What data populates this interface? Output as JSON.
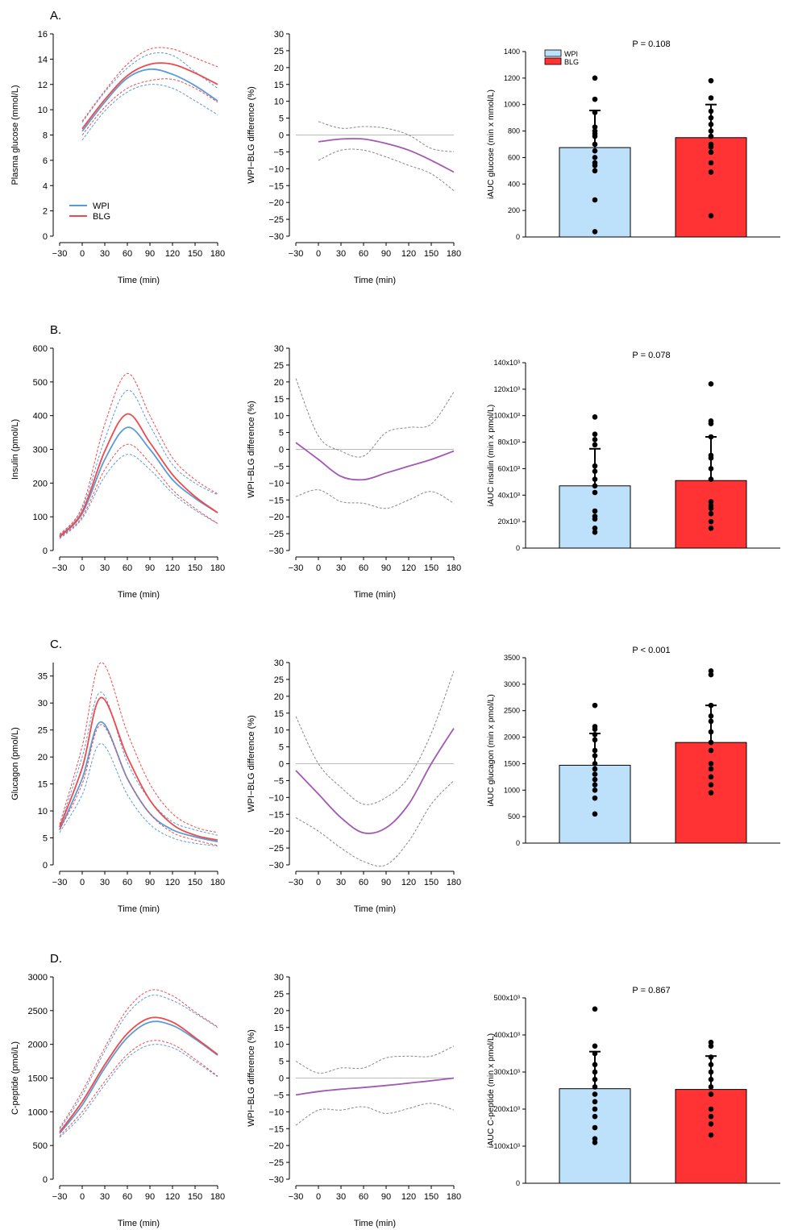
{
  "colors": {
    "wpi_line": "#5b9bd5",
    "blg_line": "#f0494b",
    "diff_line": "#a259b5",
    "diff_ci": "#888888",
    "zero_line": "#bbbbbb",
    "wpi_bar": "#bde0fb",
    "blg_bar": "#ff3333",
    "axis": "#000000"
  },
  "legend": {
    "wpi": "WPI",
    "blg": "BLG"
  },
  "panels": [
    {
      "label": "A.",
      "ylabel": "Plasma glucose (mmol/L)",
      "ylim": [
        0,
        16
      ],
      "yticks": [
        "0",
        "2",
        "4",
        "6",
        "8",
        "10",
        "12",
        "14",
        "16"
      ],
      "bar_pvalue": "P = 0.108",
      "bar_ylabel": "iAUC glucose (min x mmol/L)",
      "bar_ylim": [
        0,
        1400
      ],
      "bar_yticks": [
        "0",
        "200",
        "400",
        "600",
        "800",
        "1000",
        "1200",
        "1400"
      ]
    },
    {
      "label": "B.",
      "ylabel": "Insulin (pmol/L)",
      "ylim": [
        0,
        600
      ],
      "yticks": [
        "0",
        "100",
        "200",
        "300",
        "400",
        "500",
        "600"
      ],
      "bar_pvalue": "P = 0.078",
      "bar_ylabel": "iAUC insulin (min x pmol/L)",
      "bar_ylim": [
        0,
        140000
      ],
      "bar_yticks": [
        "0",
        "20x10³",
        "40x10³",
        "60x10³",
        "80x10³",
        "100x10³",
        "120x10³",
        "140x10³"
      ]
    },
    {
      "label": "C.",
      "ylabel": "Glucagon (pmol/L)",
      "ylim": [
        0,
        37.5
      ],
      "yticks": [
        "0",
        "5",
        "10",
        "15",
        "20",
        "25",
        "30",
        "35"
      ],
      "bar_pvalue": "P < 0.001",
      "bar_ylabel": "iAUC glucagon (min x pmol/L)",
      "bar_ylim": [
        0,
        3500
      ],
      "bar_yticks": [
        "0",
        "500",
        "1000",
        "1500",
        "2000",
        "2500",
        "3000",
        "3500"
      ]
    },
    {
      "label": "D.",
      "ylabel": "C-peptide (pmol/L)",
      "ylim": [
        0,
        3000
      ],
      "yticks": [
        "0",
        "500",
        "1000",
        "1500",
        "2000",
        "2500",
        "3000"
      ],
      "bar_pvalue": "P = 0.867",
      "bar_ylabel": "iAUC C-peptide (min x pmol/L)",
      "bar_ylim": [
        0,
        500000
      ],
      "bar_yticks": [
        "0",
        "100x10³",
        "200x10³",
        "300x10³",
        "400x10³",
        "500x10³"
      ]
    }
  ],
  "shared": {
    "xlabel": "Time (min)",
    "xticks": [
      "−30",
      "0",
      "30",
      "60",
      "90",
      "120",
      "150",
      "180"
    ],
    "xlim": [
      -30,
      180
    ],
    "diff_ylabel": "WPI−BLG difference (%)",
    "diff_ylim": [
      -30,
      30
    ],
    "diff_yticks": [
      "−30",
      "−25",
      "−20",
      "−15",
      "−10",
      "−5",
      "0",
      "5",
      "10",
      "15",
      "20",
      "25",
      "30"
    ]
  },
  "chart_data": [
    {
      "panel": "A",
      "type": "line",
      "xlabel": "Time (min)",
      "ylabel": "Plasma glucose (mmol/L)",
      "ylim": [
        0,
        16
      ],
      "x": [
        0,
        30,
        60,
        90,
        120,
        150,
        180
      ],
      "series": [
        {
          "name": "WPI",
          "values": [
            8.3,
            10.6,
            12.5,
            13.2,
            12.8,
            11.9,
            10.7
          ],
          "lower": [
            7.6,
            9.9,
            11.4,
            12.0,
            11.7,
            10.7,
            9.6
          ],
          "upper": [
            9.0,
            11.4,
            13.3,
            14.4,
            14.3,
            13.0,
            11.7
          ]
        },
        {
          "name": "BLG",
          "values": [
            8.5,
            10.8,
            12.7,
            13.6,
            13.6,
            12.9,
            12.0
          ],
          "lower": [
            8.0,
            10.2,
            11.7,
            12.3,
            12.4,
            11.7,
            10.6
          ],
          "upper": [
            9.1,
            11.5,
            13.6,
            14.8,
            14.8,
            14.1,
            13.4
          ]
        }
      ]
    },
    {
      "panel": "A",
      "type": "line",
      "xlabel": "Time (min)",
      "ylabel": "WPI−BLG difference (%)",
      "ylim": [
        -30,
        30
      ],
      "x": [
        0,
        30,
        60,
        90,
        120,
        150,
        180
      ],
      "series": [
        {
          "values": [
            -2,
            -1.2,
            -1.2,
            -2.5,
            -4.5,
            -7.5,
            -11
          ],
          "lower": [
            -7.5,
            -4.5,
            -4.5,
            -6.5,
            -9,
            -11.5,
            -16.5
          ],
          "upper": [
            4,
            2,
            2.5,
            2,
            0,
            -4,
            -5
          ]
        }
      ]
    },
    {
      "panel": "A",
      "type": "bar",
      "ylabel": "iAUC glucose (min x mmol/L)",
      "ylim": [
        0,
        1400
      ],
      "categories": [
        "WPI",
        "BLG"
      ],
      "values": [
        675,
        750
      ],
      "sd": [
        280,
        250
      ],
      "points": [
        [
          1200,
          1040,
          940,
          830,
          800,
          780,
          760,
          700,
          650,
          600,
          560,
          540,
          500,
          280,
          40
        ],
        [
          1180,
          1050,
          950,
          900,
          850,
          800,
          760,
          700,
          680,
          640,
          560,
          490,
          160
        ]
      ]
    },
    {
      "panel": "B",
      "type": "line",
      "xlabel": "Time (min)",
      "ylabel": "Insulin (pmol/L)",
      "ylim": [
        0,
        600
      ],
      "x": [
        -30,
        0,
        30,
        60,
        90,
        120,
        150,
        180
      ],
      "series": [
        {
          "name": "WPI",
          "values": [
            40,
            110,
            270,
            365,
            300,
            210,
            155,
            112
          ],
          "lower": [
            35,
            95,
            220,
            285,
            240,
            170,
            120,
            80
          ],
          "upper": [
            45,
            125,
            330,
            475,
            370,
            255,
            200,
            165
          ]
        },
        {
          "name": "BLG",
          "values": [
            42,
            115,
            295,
            405,
            320,
            225,
            160,
            112
          ],
          "lower": [
            38,
            100,
            240,
            315,
            260,
            180,
            125,
            80
          ],
          "upper": [
            48,
            130,
            375,
            525,
            400,
            275,
            210,
            168
          ]
        }
      ]
    },
    {
      "panel": "B",
      "type": "line",
      "xlabel": "Time (min)",
      "ylabel": "WPI−BLG difference (%)",
      "ylim": [
        -30,
        30
      ],
      "x": [
        -30,
        0,
        30,
        60,
        90,
        120,
        150,
        180
      ],
      "series": [
        {
          "values": [
            2,
            -3,
            -8,
            -9,
            -7,
            -5,
            -3,
            -0.5
          ],
          "lower": [
            -14,
            -12,
            -15.5,
            -16,
            -17.5,
            -15,
            -12.5,
            -16
          ],
          "upper": [
            21,
            4,
            -0.5,
            -2,
            5,
            6.5,
            7.5,
            17
          ]
        }
      ]
    },
    {
      "panel": "B",
      "type": "bar",
      "ylabel": "iAUC insulin (min x pmol/L)",
      "ylim": [
        0,
        140000
      ],
      "categories": [
        "WPI",
        "BLG"
      ],
      "values": [
        47000,
        51000
      ],
      "sd": [
        28000,
        33000
      ],
      "points": [
        [
          99000,
          86000,
          82000,
          78000,
          62000,
          58000,
          52000,
          47000,
          42000,
          28000,
          24000,
          22000,
          15000,
          12000
        ],
        [
          124000,
          96000,
          94000,
          84000,
          70000,
          68000,
          60000,
          52000,
          35000,
          32000,
          30000,
          26000,
          20000,
          15000
        ]
      ]
    },
    {
      "panel": "C",
      "type": "line",
      "xlabel": "Time (min)",
      "ylabel": "Glucagon (pmol/L)",
      "ylim": [
        0,
        37.5
      ],
      "x": [
        -30,
        0,
        25,
        60,
        90,
        120,
        150,
        180
      ],
      "series": [
        {
          "name": "WPI",
          "values": [
            6.5,
            16,
            26.5,
            16,
            9.5,
            6.5,
            5.2,
            4.3
          ],
          "lower": [
            6,
            13,
            22.5,
            13,
            7.5,
            5,
            4,
            3.5
          ],
          "upper": [
            7,
            20,
            32,
            19,
            12,
            8,
            6.5,
            5.5
          ]
        },
        {
          "name": "BLG",
          "values": [
            7,
            18,
            31,
            20,
            12,
            7.5,
            5.5,
            4.6
          ],
          "lower": [
            6.5,
            15,
            26,
            16,
            9.5,
            6,
            4.6,
            3.6
          ],
          "upper": [
            7.5,
            22,
            37.5,
            24.5,
            15,
            9.5,
            7,
            6
          ]
        }
      ]
    },
    {
      "panel": "C",
      "type": "line",
      "xlabel": "Time (min)",
      "ylabel": "WPI−BLG difference (%)",
      "ylim": [
        -30,
        30
      ],
      "x": [
        -30,
        0,
        30,
        60,
        90,
        120,
        150,
        180
      ],
      "series": [
        {
          "values": [
            -2,
            -9,
            -16,
            -20.5,
            -19,
            -12,
            0,
            10.5
          ],
          "lower": [
            -16,
            -20,
            -25,
            -29,
            -30,
            -23,
            -12,
            -5
          ],
          "upper": [
            14,
            0,
            -7,
            -12,
            -10,
            -4,
            9,
            27.5
          ]
        }
      ]
    },
    {
      "panel": "C",
      "type": "bar",
      "ylabel": "iAUC glucagon (min x pmol/L)",
      "ylim": [
        0,
        3500
      ],
      "categories": [
        "WPI",
        "BLG"
      ],
      "values": [
        1470,
        1900
      ],
      "sd": [
        600,
        700
      ],
      "points": [
        [
          2600,
          2200,
          2150,
          2050,
          1950,
          1750,
          1650,
          1500,
          1400,
          1300,
          1200,
          1100,
          1000,
          850,
          550
        ],
        [
          3250,
          3180,
          2600,
          2400,
          2300,
          2100,
          1900,
          1750,
          1500,
          1400,
          1250,
          1100,
          950
        ]
      ]
    },
    {
      "panel": "D",
      "type": "line",
      "xlabel": "Time (min)",
      "ylabel": "C-peptide (pmol/L)",
      "ylim": [
        0,
        3000
      ],
      "x": [
        -30,
        0,
        30,
        60,
        90,
        120,
        150,
        180
      ],
      "series": [
        {
          "name": "WPI",
          "values": [
            680,
            1100,
            1650,
            2100,
            2330,
            2280,
            2080,
            1840
          ],
          "lower": [
            620,
            950,
            1400,
            1800,
            1990,
            1950,
            1750,
            1520
          ],
          "upper": [
            740,
            1250,
            1900,
            2450,
            2720,
            2650,
            2460,
            2250
          ]
        },
        {
          "name": "BLG",
          "values": [
            700,
            1150,
            1700,
            2160,
            2390,
            2330,
            2100,
            1850
          ],
          "lower": [
            640,
            1000,
            1450,
            1850,
            2050,
            2000,
            1780,
            1530
          ],
          "upper": [
            760,
            1300,
            1950,
            2520,
            2800,
            2720,
            2480,
            2260
          ]
        }
      ]
    },
    {
      "panel": "D",
      "type": "line",
      "xlabel": "Time (min)",
      "ylabel": "WPI−BLG difference (%)",
      "ylim": [
        -30,
        30
      ],
      "x": [
        -30,
        0,
        30,
        60,
        90,
        120,
        150,
        180
      ],
      "series": [
        {
          "values": [
            -5,
            -4,
            -3.3,
            -2.8,
            -2.2,
            -1.5,
            -0.8,
            0
          ],
          "lower": [
            -14,
            -9.5,
            -9.5,
            -8.5,
            -10.5,
            -9,
            -7.5,
            -9.5
          ],
          "upper": [
            5,
            1.5,
            3,
            3,
            6,
            6.5,
            6.5,
            9.5
          ]
        }
      ]
    },
    {
      "panel": "D",
      "type": "bar",
      "ylabel": "iAUC C-peptide (min x pmol/L)",
      "ylim": [
        0,
        500000
      ],
      "categories": [
        "WPI",
        "BLG"
      ],
      "values": [
        255000,
        253000
      ],
      "sd": [
        100000,
        90000
      ],
      "points": [
        [
          470000,
          370000,
          350000,
          320000,
          300000,
          280000,
          260000,
          240000,
          220000,
          200000,
          180000,
          150000,
          120000,
          110000
        ],
        [
          380000,
          370000,
          340000,
          320000,
          300000,
          280000,
          260000,
          240000,
          200000,
          180000,
          160000,
          130000
        ]
      ]
    }
  ]
}
